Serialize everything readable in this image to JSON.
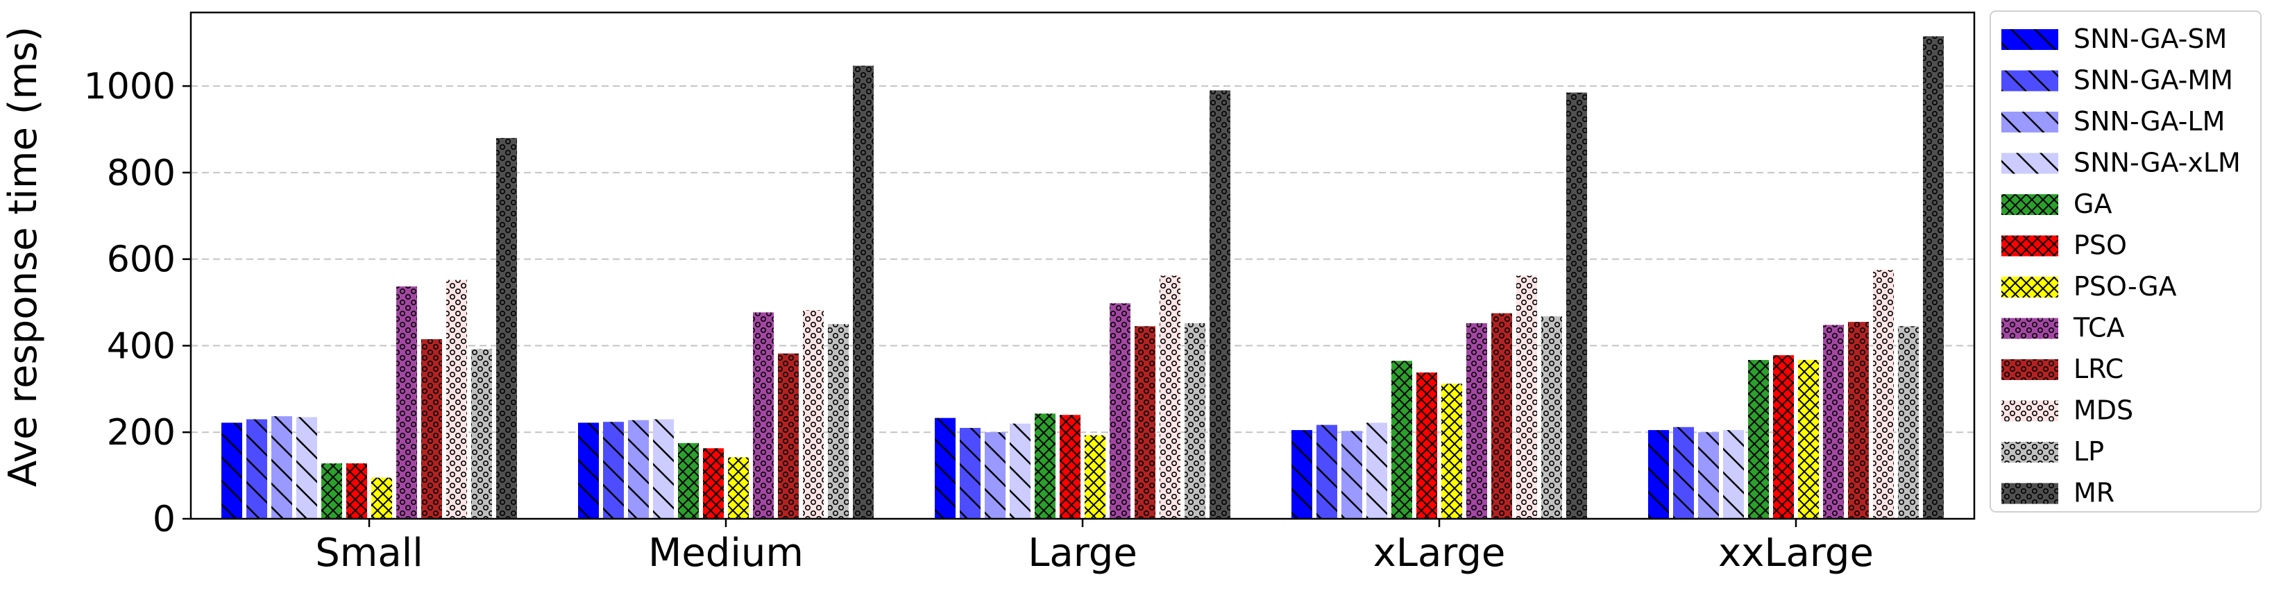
{
  "chart_data": {
    "type": "bar",
    "title": "",
    "xlabel": "",
    "ylabel": "Ave response time (ms)",
    "ylim": [
      0,
      1170
    ],
    "yticks": [
      0,
      200,
      400,
      600,
      800,
      1000
    ],
    "grid": "horizontal-dashed",
    "legend_position": "right",
    "categories": [
      "Small",
      "Medium",
      "Large",
      "xLarge",
      "xxLarge"
    ],
    "series": [
      {
        "name": "SNN-GA-SM",
        "color": "#0000ff",
        "pattern": "backslash",
        "values": [
          222,
          222,
          233,
          205,
          205
        ]
      },
      {
        "name": "SNN-GA-MM",
        "color": "#4d4dff",
        "pattern": "backslash",
        "values": [
          230,
          224,
          210,
          217,
          212
        ]
      },
      {
        "name": "SNN-GA-LM",
        "color": "#9999ff",
        "pattern": "backslash",
        "values": [
          237,
          228,
          200,
          203,
          200
        ]
      },
      {
        "name": "SNN-GA-xLM",
        "color": "#ccccff",
        "pattern": "backslash",
        "values": [
          235,
          230,
          220,
          222,
          205
        ]
      },
      {
        "name": "GA",
        "color": "#2ca02c",
        "pattern": "crosshatch",
        "values": [
          128,
          175,
          243,
          365,
          367
        ]
      },
      {
        "name": "PSO",
        "color": "#ff0000",
        "pattern": "crosshatch",
        "values": [
          128,
          163,
          240,
          338,
          378
        ]
      },
      {
        "name": "PSO-GA",
        "color": "#ffff00",
        "pattern": "crosshatch",
        "values": [
          95,
          142,
          193,
          312,
          367
        ]
      },
      {
        "name": "TCA",
        "color": "#a347a3",
        "pattern": "dots",
        "values": [
          537,
          477,
          498,
          452,
          448
        ]
      },
      {
        "name": "LRC",
        "color": "#b22222",
        "pattern": "dots",
        "values": [
          415,
          382,
          445,
          475,
          455
        ]
      },
      {
        "name": "MDS",
        "color": "#ffe4e6",
        "pattern": "dots",
        "values": [
          552,
          482,
          562,
          562,
          575
        ]
      },
      {
        "name": "LP",
        "color": "#c0c0c0",
        "pattern": "dots",
        "values": [
          392,
          450,
          452,
          468,
          445
        ]
      },
      {
        "name": "MR",
        "color": "#505050",
        "pattern": "dots",
        "values": [
          880,
          1047,
          990,
          985,
          1115
        ]
      }
    ]
  }
}
